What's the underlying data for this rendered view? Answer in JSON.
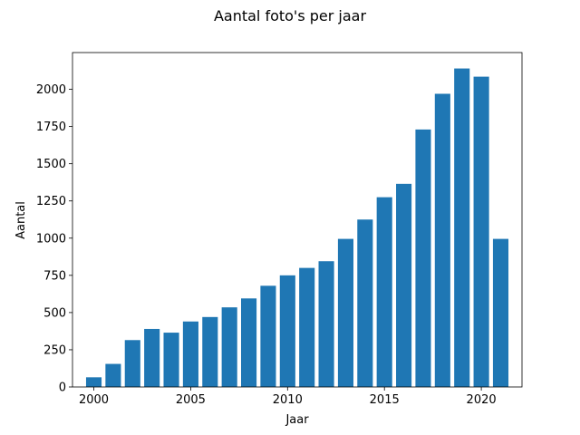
{
  "chart_data": {
    "type": "bar",
    "title": "Aantal foto's per jaar",
    "xlabel": "Jaar",
    "ylabel": "Aantal",
    "x": [
      2000,
      2001,
      2002,
      2003,
      2004,
      2005,
      2006,
      2007,
      2008,
      2009,
      2010,
      2011,
      2012,
      2013,
      2014,
      2015,
      2016,
      2017,
      2018,
      2019,
      2020,
      2021
    ],
    "values": [
      65,
      155,
      315,
      390,
      365,
      440,
      470,
      535,
      595,
      680,
      750,
      800,
      845,
      995,
      1125,
      1275,
      1365,
      1730,
      1970,
      2140,
      2085,
      995
    ],
    "xticks": [
      2000,
      2005,
      2010,
      2015,
      2020
    ],
    "yticks": [
      0,
      250,
      500,
      750,
      1000,
      1250,
      1500,
      1750,
      2000
    ],
    "xlim": [
      1998.9,
      2022.1
    ],
    "ylim": [
      0,
      2247
    ],
    "bar_color": "#1f77b4",
    "grid": false
  }
}
